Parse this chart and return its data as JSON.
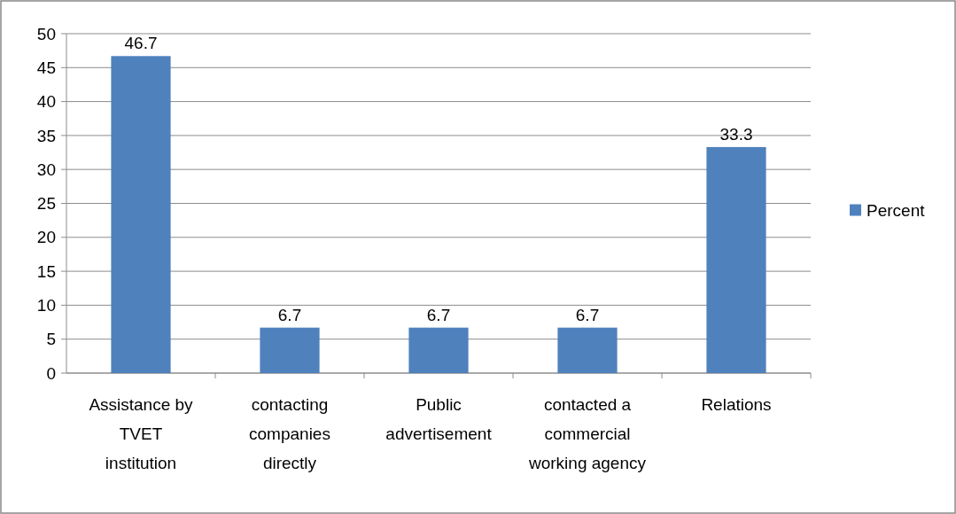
{
  "chart_data": {
    "type": "bar",
    "categories": [
      "Assistance by TVET institution",
      "contacting companies directly",
      "Public advertisement",
      "contacted a commercial working agency",
      "Relations"
    ],
    "series": [
      {
        "name": "Percent",
        "color": "#4f81bd",
        "values": [
          46.7,
          6.7,
          6.7,
          6.7,
          33.3
        ]
      }
    ],
    "ylim": [
      0,
      50
    ],
    "yticks": [
      0,
      5,
      10,
      15,
      20,
      25,
      30,
      35,
      40,
      45,
      50
    ],
    "grid": "y",
    "legend": "right",
    "data_labels": true
  }
}
